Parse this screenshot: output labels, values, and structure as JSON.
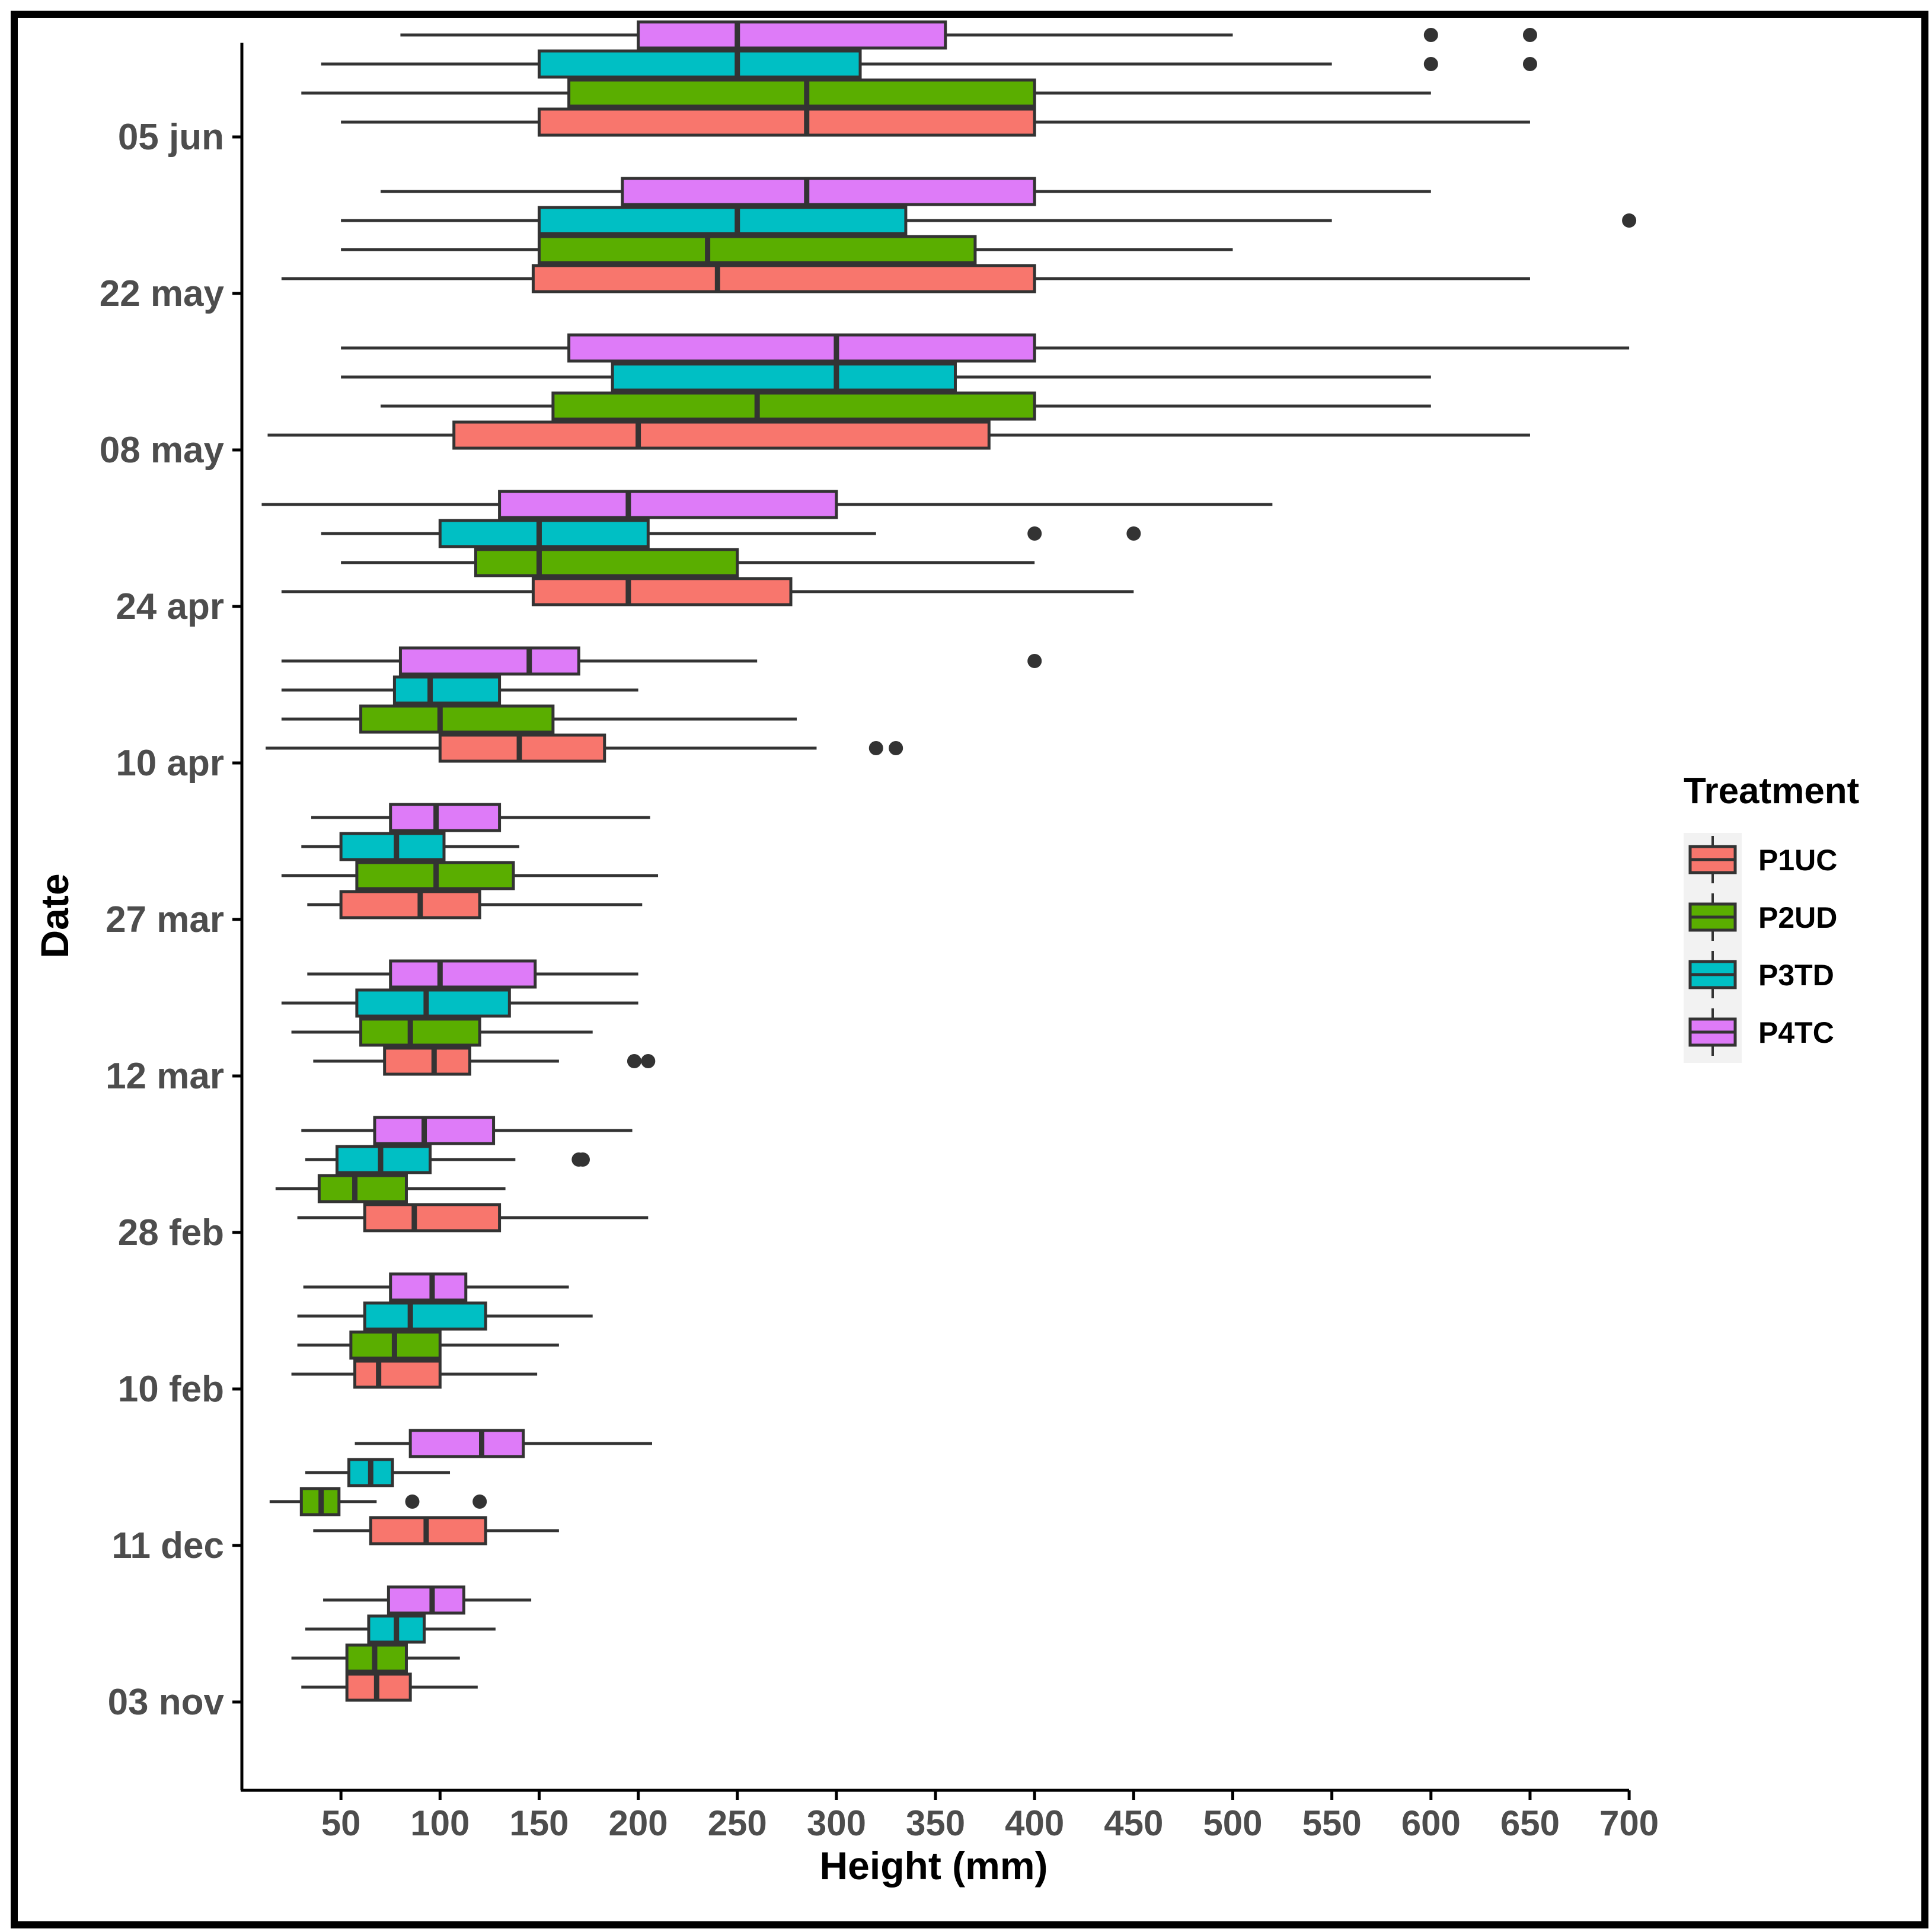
{
  "colors": {
    "P1UC": "#F8766D",
    "P2UD": "#5AAE00",
    "P3TD": "#00BFC4",
    "P4TC": "#DE7BF8",
    "outline": "#333333",
    "axis": "#000000"
  },
  "chart_data": {
    "type": "boxplot",
    "orientation": "horizontal",
    "xlabel": "Height (mm)",
    "ylabel": "Date",
    "xlim": [
      0,
      700
    ],
    "xticks": [
      "50",
      "100",
      "150",
      "200",
      "250",
      "300",
      "350",
      "400",
      "450",
      "500",
      "550",
      "600",
      "650",
      "700"
    ],
    "categories": [
      "05 jun",
      "22 may",
      "08 may",
      "24 apr",
      "10 apr",
      "27 mar",
      "12 mar",
      "28 feb",
      "10 feb",
      "11 dec",
      "03 nov"
    ],
    "legend": {
      "title": "Treatment",
      "position": "right",
      "entries": [
        "P1UC",
        "P2UD",
        "P3TD",
        "P4TC"
      ]
    },
    "grid": false,
    "series": [
      {
        "name": "P1UC",
        "boxes": [
          {
            "date": "05 jun",
            "min": 50,
            "q1": 150,
            "median": 285,
            "q3": 400,
            "max": 650,
            "outliers": []
          },
          {
            "date": "22 may",
            "min": 20,
            "q1": 147,
            "median": 240,
            "q3": 400,
            "max": 650,
            "outliers": []
          },
          {
            "date": "08 may",
            "min": 13,
            "q1": 107,
            "median": 200,
            "q3": 377,
            "max": 650,
            "outliers": []
          },
          {
            "date": "24 apr",
            "min": 20,
            "q1": 147,
            "median": 195,
            "q3": 277,
            "max": 450,
            "outliers": []
          },
          {
            "date": "10 apr",
            "min": 12,
            "q1": 100,
            "median": 140,
            "q3": 183,
            "max": 290,
            "outliers": [
              320,
              330
            ]
          },
          {
            "date": "27 mar",
            "min": 33,
            "q1": 50,
            "median": 90,
            "q3": 120,
            "max": 202,
            "outliers": []
          },
          {
            "date": "12 mar",
            "min": 36,
            "q1": 72,
            "median": 97,
            "q3": 115,
            "max": 160,
            "outliers": [
              198,
              205
            ]
          },
          {
            "date": "28 feb",
            "min": 28,
            "q1": 62,
            "median": 87,
            "q3": 130,
            "max": 205,
            "outliers": []
          },
          {
            "date": "10 feb",
            "min": 25,
            "q1": 57,
            "median": 69,
            "q3": 100,
            "max": 149,
            "outliers": []
          },
          {
            "date": "11 dec",
            "min": 36,
            "q1": 65,
            "median": 93,
            "q3": 123,
            "max": 160,
            "outliers": []
          },
          {
            "date": "03 nov",
            "min": 30,
            "q1": 53,
            "median": 68,
            "q3": 85,
            "max": 119,
            "outliers": []
          }
        ]
      },
      {
        "name": "P2UD",
        "boxes": [
          {
            "date": "05 jun",
            "min": 30,
            "q1": 165,
            "median": 285,
            "q3": 400,
            "max": 600,
            "outliers": []
          },
          {
            "date": "22 may",
            "min": 50,
            "q1": 150,
            "median": 235,
            "q3": 370,
            "max": 500,
            "outliers": []
          },
          {
            "date": "08 may",
            "min": 70,
            "q1": 157,
            "median": 260,
            "q3": 400,
            "max": 600,
            "outliers": []
          },
          {
            "date": "24 apr",
            "min": 50,
            "q1": 118,
            "median": 150,
            "q3": 250,
            "max": 400,
            "outliers": []
          },
          {
            "date": "10 apr",
            "min": 20,
            "q1": 60,
            "median": 100,
            "q3": 157,
            "max": 280,
            "outliers": []
          },
          {
            "date": "27 mar",
            "min": 20,
            "q1": 58,
            "median": 98,
            "q3": 137,
            "max": 210,
            "outliers": []
          },
          {
            "date": "12 mar",
            "min": 25,
            "q1": 60,
            "median": 85,
            "q3": 120,
            "max": 177,
            "outliers": []
          },
          {
            "date": "28 feb",
            "min": 17,
            "q1": 39,
            "median": 57,
            "q3": 83,
            "max": 133,
            "outliers": []
          },
          {
            "date": "10 feb",
            "min": 28,
            "q1": 55,
            "median": 77,
            "q3": 100,
            "max": 160,
            "outliers": []
          },
          {
            "date": "11 dec",
            "min": 14,
            "q1": 30,
            "median": 40,
            "q3": 49,
            "max": 68,
            "outliers": [
              86,
              120
            ]
          },
          {
            "date": "03 nov",
            "min": 25,
            "q1": 53,
            "median": 67,
            "q3": 83,
            "max": 110,
            "outliers": []
          }
        ]
      },
      {
        "name": "P3TD",
        "boxes": [
          {
            "date": "05 jun",
            "min": 40,
            "q1": 150,
            "median": 250,
            "q3": 312,
            "max": 550,
            "outliers": [
              600,
              650
            ]
          },
          {
            "date": "22 may",
            "min": 50,
            "q1": 150,
            "median": 250,
            "q3": 335,
            "max": 550,
            "outliers": [
              700
            ]
          },
          {
            "date": "08 may",
            "min": 50,
            "q1": 187,
            "median": 300,
            "q3": 360,
            "max": 600,
            "outliers": []
          },
          {
            "date": "24 apr",
            "min": 40,
            "q1": 100,
            "median": 150,
            "q3": 205,
            "max": 320,
            "outliers": [
              400,
              450
            ]
          },
          {
            "date": "10 apr",
            "min": 20,
            "q1": 77,
            "median": 95,
            "q3": 130,
            "max": 200,
            "outliers": []
          },
          {
            "date": "27 mar",
            "min": 30,
            "q1": 50,
            "median": 78,
            "q3": 102,
            "max": 140,
            "outliers": []
          },
          {
            "date": "12 mar",
            "min": 20,
            "q1": 58,
            "median": 93,
            "q3": 135,
            "max": 200,
            "outliers": []
          },
          {
            "date": "28 feb",
            "min": 32,
            "q1": 48,
            "median": 70,
            "q3": 95,
            "max": 138,
            "outliers": [
              170,
              172
            ]
          },
          {
            "date": "10 feb",
            "min": 28,
            "q1": 62,
            "median": 85,
            "q3": 123,
            "max": 177,
            "outliers": []
          },
          {
            "date": "11 dec",
            "min": 32,
            "q1": 54,
            "median": 65,
            "q3": 76,
            "max": 105,
            "outliers": []
          },
          {
            "date": "03 nov",
            "min": 32,
            "q1": 64,
            "median": 78,
            "q3": 92,
            "max": 128,
            "outliers": []
          }
        ]
      },
      {
        "name": "P4TC",
        "boxes": [
          {
            "date": "05 jun",
            "min": 80,
            "q1": 200,
            "median": 250,
            "q3": 355,
            "max": 500,
            "outliers": [
              600,
              650
            ]
          },
          {
            "date": "22 may",
            "min": 70,
            "q1": 192,
            "median": 285,
            "q3": 400,
            "max": 600,
            "outliers": []
          },
          {
            "date": "08 may",
            "min": 50,
            "q1": 165,
            "median": 300,
            "q3": 400,
            "max": 700,
            "outliers": []
          },
          {
            "date": "24 apr",
            "min": 10,
            "q1": 130,
            "median": 195,
            "q3": 300,
            "max": 520,
            "outliers": []
          },
          {
            "date": "10 apr",
            "min": 20,
            "q1": 80,
            "median": 145,
            "q3": 170,
            "max": 260,
            "outliers": [
              400
            ]
          },
          {
            "date": "27 mar",
            "min": 35,
            "q1": 75,
            "median": 98,
            "q3": 130,
            "max": 206,
            "outliers": []
          },
          {
            "date": "12 mar",
            "min": 33,
            "q1": 75,
            "median": 100,
            "q3": 148,
            "max": 200,
            "outliers": []
          },
          {
            "date": "28 feb",
            "min": 30,
            "q1": 67,
            "median": 92,
            "q3": 127,
            "max": 197,
            "outliers": []
          },
          {
            "date": "10 feb",
            "min": 31,
            "q1": 75,
            "median": 96,
            "q3": 113,
            "max": 165,
            "outliers": []
          },
          {
            "date": "11 dec",
            "min": 57,
            "q1": 85,
            "median": 121,
            "q3": 142,
            "max": 207,
            "outliers": []
          },
          {
            "date": "03 nov",
            "min": 41,
            "q1": 74,
            "median": 96,
            "q3": 112,
            "max": 146,
            "outliers": []
          }
        ]
      }
    ]
  }
}
